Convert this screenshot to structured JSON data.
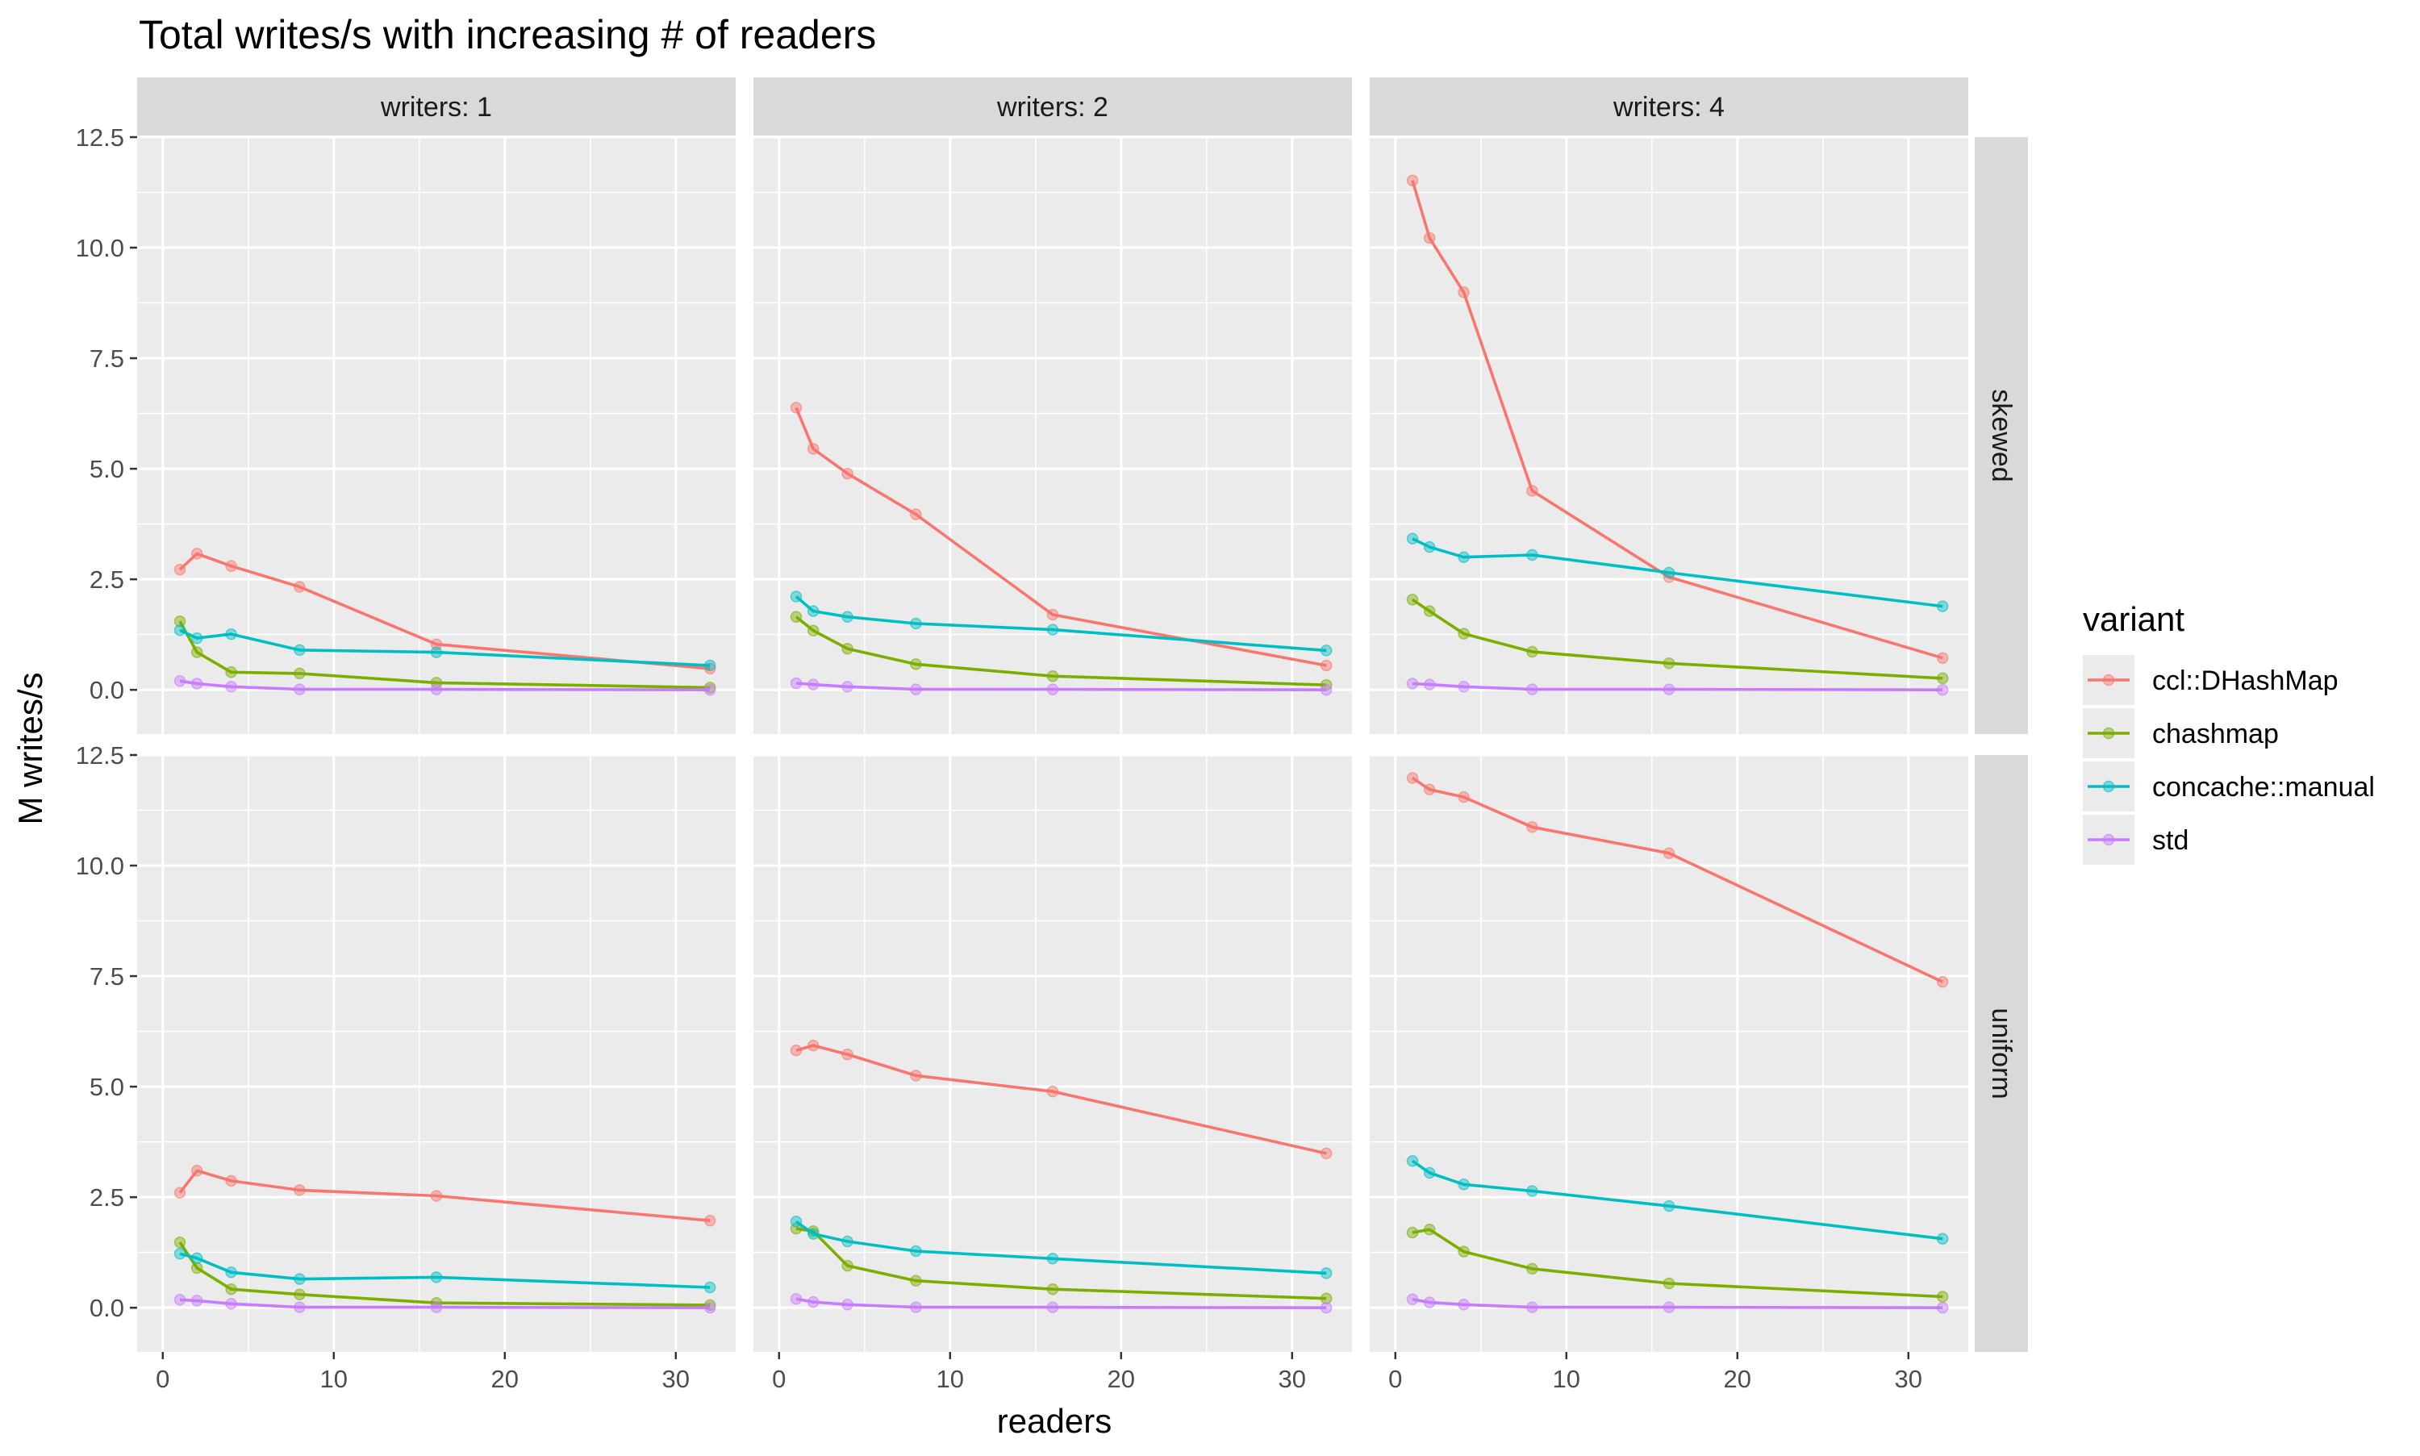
{
  "chart_data": {
    "type": "line",
    "title": "Total writes/s with increasing # of readers",
    "xlabel": "readers",
    "ylabel": "M writes/s",
    "xlim": [
      -1.5,
      33.5
    ],
    "ylim": [
      -1.0,
      12.5
    ],
    "x_ticks": [
      0,
      10,
      20,
      30
    ],
    "x_tick_labels": [
      "0",
      "10",
      "20",
      "30"
    ],
    "y_ticks": [
      0,
      2.5,
      5,
      7.5,
      10,
      12.5
    ],
    "y_tick_labels": [
      "0.0",
      "2.5",
      "5.0",
      "7.5",
      "10.0",
      "12.5"
    ],
    "x": [
      1,
      2,
      4,
      8,
      16,
      32
    ],
    "column_facets": [
      "writers: 1",
      "writers: 2",
      "writers: 4"
    ],
    "row_facets": [
      "skewed",
      "uniform"
    ],
    "legend": {
      "title": "variant",
      "position": "right",
      "entries": [
        "ccl::DHashMap",
        "chashmap",
        "concache::manual",
        "std"
      ]
    },
    "series_colors": {
      "ccl::DHashMap": "#F8766D",
      "chashmap": "#7CAE00",
      "concache::manual": "#00BFC4",
      "std": "#C77CFF"
    },
    "panels": [
      {
        "row": "skewed",
        "col": "writers: 1",
        "series": [
          {
            "name": "ccl::DHashMap",
            "values": [
              2.72,
              3.08,
              2.8,
              2.33,
              1.03,
              0.48
            ]
          },
          {
            "name": "chashmap",
            "values": [
              1.55,
              0.85,
              0.4,
              0.37,
              0.16,
              0.05
            ]
          },
          {
            "name": "concache::manual",
            "values": [
              1.35,
              1.17,
              1.26,
              0.9,
              0.85,
              0.55
            ]
          },
          {
            "name": "std",
            "values": [
              0.2,
              0.14,
              0.07,
              0.01,
              0.01,
              0.0
            ]
          }
        ]
      },
      {
        "row": "skewed",
        "col": "writers: 2",
        "series": [
          {
            "name": "ccl::DHashMap",
            "values": [
              6.38,
              5.45,
              4.89,
              3.97,
              1.7,
              0.55
            ]
          },
          {
            "name": "chashmap",
            "values": [
              1.65,
              1.34,
              0.93,
              0.58,
              0.31,
              0.11
            ]
          },
          {
            "name": "concache::manual",
            "values": [
              2.11,
              1.78,
              1.65,
              1.5,
              1.36,
              0.89
            ]
          },
          {
            "name": "std",
            "values": [
              0.15,
              0.12,
              0.07,
              0.01,
              0.01,
              0.0
            ]
          }
        ]
      },
      {
        "row": "skewed",
        "col": "writers: 4",
        "series": [
          {
            "name": "ccl::DHashMap",
            "values": [
              11.52,
              10.22,
              8.99,
              4.5,
              2.55,
              0.72
            ]
          },
          {
            "name": "chashmap",
            "values": [
              2.04,
              1.78,
              1.27,
              0.86,
              0.6,
              0.26
            ]
          },
          {
            "name": "concache::manual",
            "values": [
              3.42,
              3.23,
              3.0,
              3.05,
              2.65,
              1.89
            ]
          },
          {
            "name": "std",
            "values": [
              0.14,
              0.12,
              0.07,
              0.01,
              0.01,
              0.0
            ]
          }
        ]
      },
      {
        "row": "uniform",
        "col": "writers: 1",
        "series": [
          {
            "name": "ccl::DHashMap",
            "values": [
              2.6,
              3.1,
              2.87,
              2.66,
              2.53,
              1.97
            ]
          },
          {
            "name": "chashmap",
            "values": [
              1.48,
              0.9,
              0.42,
              0.3,
              0.11,
              0.06
            ]
          },
          {
            "name": "concache::manual",
            "values": [
              1.22,
              1.12,
              0.8,
              0.65,
              0.69,
              0.46
            ]
          },
          {
            "name": "std",
            "values": [
              0.18,
              0.16,
              0.09,
              0.01,
              0.01,
              0.0
            ]
          }
        ]
      },
      {
        "row": "uniform",
        "col": "writers: 2",
        "series": [
          {
            "name": "ccl::DHashMap",
            "values": [
              5.82,
              5.93,
              5.73,
              5.25,
              4.89,
              3.49
            ]
          },
          {
            "name": "chashmap",
            "values": [
              1.79,
              1.73,
              0.95,
              0.61,
              0.42,
              0.21
            ]
          },
          {
            "name": "concache::manual",
            "values": [
              1.95,
              1.67,
              1.5,
              1.28,
              1.11,
              0.78
            ]
          },
          {
            "name": "std",
            "values": [
              0.2,
              0.13,
              0.07,
              0.01,
              0.01,
              0.0
            ]
          }
        ]
      },
      {
        "row": "uniform",
        "col": "writers: 4",
        "series": [
          {
            "name": "ccl::DHashMap",
            "values": [
              11.98,
              11.72,
              11.55,
              10.87,
              10.28,
              7.37
            ]
          },
          {
            "name": "chashmap",
            "values": [
              1.7,
              1.77,
              1.27,
              0.88,
              0.55,
              0.25
            ]
          },
          {
            "name": "concache::manual",
            "values": [
              3.32,
              3.05,
              2.79,
              2.64,
              2.3,
              1.56
            ]
          },
          {
            "name": "std",
            "values": [
              0.19,
              0.12,
              0.07,
              0.01,
              0.01,
              0.0
            ]
          }
        ]
      }
    ]
  }
}
